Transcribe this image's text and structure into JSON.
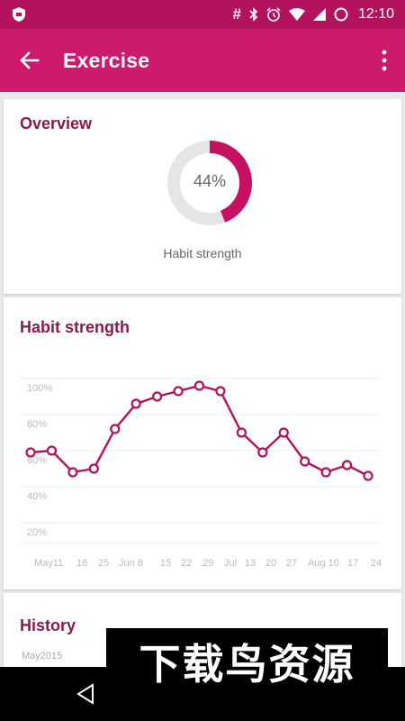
{
  "status_bar": {
    "time": "12:10",
    "icons": [
      "shield-icon",
      "hash-icon",
      "bluetooth-icon",
      "alarm-icon",
      "wifi-icon",
      "signal-icon",
      "circle-icon"
    ]
  },
  "app_bar": {
    "title": "Exercise",
    "back_icon": "arrow-back-icon",
    "menu_icon": "more-vert-icon"
  },
  "overview": {
    "title": "Overview",
    "percent_label": "44%",
    "percent_value": 44,
    "caption": "Habit strength",
    "colors": {
      "accent": "#c51162",
      "track": "#e5e5e5"
    }
  },
  "habit_strength": {
    "title": "Habit strength"
  },
  "chart_data": {
    "type": "line",
    "title": "Habit strength",
    "x": [
      "May 11",
      "",
      "18",
      "25",
      "Jun 8",
      "",
      "15",
      "22",
      "29",
      "Jul",
      "13",
      "20",
      "27",
      "Aug 10",
      "",
      "17",
      "24"
    ],
    "xtick_labels": [
      "May11",
      "18",
      "25",
      "Jun 8",
      "15",
      "22",
      "29",
      "Jul",
      "13",
      "20",
      "27",
      "Aug 10",
      "17",
      "24"
    ],
    "values": [
      59,
      60,
      48,
      50,
      72,
      86,
      90,
      93,
      96,
      93,
      70,
      59,
      70,
      54,
      48,
      52,
      46
    ],
    "yticks": [
      "100%",
      "80%",
      "60%",
      "40%",
      "20%"
    ],
    "ylim": [
      0,
      100
    ],
    "grid": true,
    "color": "#b3125d"
  },
  "history": {
    "title": "History",
    "month_label": "May2015"
  },
  "watermark": {
    "text": "下载鸟资源"
  }
}
